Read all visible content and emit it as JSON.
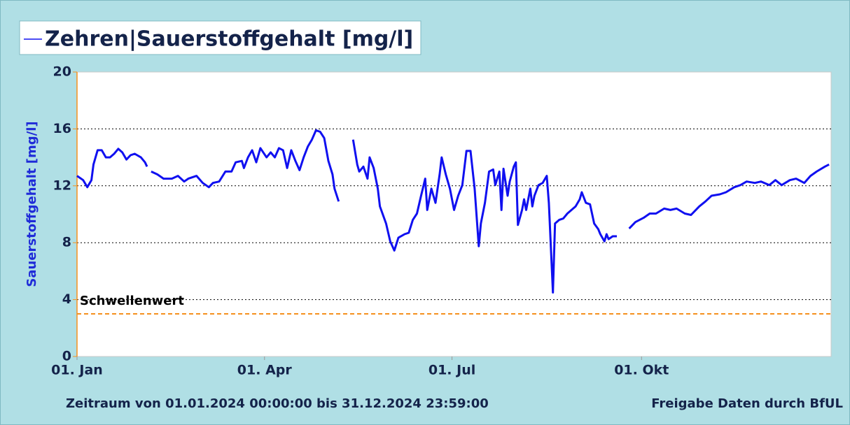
{
  "chart_data": {
    "type": "line",
    "ylabel": "Sauerstoffgehalt [mg/l]",
    "xlim": [
      0,
      366
    ],
    "xticks": [
      {
        "value": 0,
        "label": "01. Jan"
      },
      {
        "value": 91,
        "label": "01. Apr"
      },
      {
        "value": 182,
        "label": "01. Jul"
      },
      {
        "value": 274,
        "label": "01. Okt"
      }
    ],
    "ylim": [
      0,
      20
    ],
    "yticks": [
      0,
      4,
      8,
      12,
      16,
      20
    ],
    "grid": true,
    "threshold": {
      "value": 3,
      "label": "Schwellenwert",
      "color": "#f5901e"
    },
    "footer_left": "Zeitraum von 01.01.2024 00:00:00 bis 31.12.2024 23:59:00",
    "footer_right": "Freigabe Daten durch BfUL",
    "x": [
      0,
      3,
      5,
      7,
      8,
      10,
      12,
      14,
      16,
      18,
      20,
      22,
      24,
      26,
      28,
      31,
      33,
      34,
      null,
      36,
      39,
      42,
      46,
      49,
      52,
      54,
      58,
      61,
      64,
      66,
      69,
      72,
      75,
      77,
      80,
      81,
      83,
      85,
      87,
      89,
      92,
      94,
      96,
      98,
      100,
      102,
      104,
      106,
      108,
      110,
      112,
      114,
      116,
      118,
      120,
      122,
      124,
      125,
      127,
      null,
      134,
      136,
      137,
      139,
      141,
      142,
      144,
      146,
      147,
      150,
      152,
      154,
      156,
      159,
      161,
      163,
      165,
      167,
      169,
      170,
      172,
      174,
      176,
      177,
      179,
      181,
      183,
      185,
      187,
      189,
      191,
      193,
      195,
      196,
      198,
      200,
      202,
      203,
      205,
      206,
      207,
      209,
      210,
      212,
      213,
      214,
      216,
      217,
      218,
      220,
      221,
      222,
      224,
      226,
      228,
      229,
      231,
      232,
      234,
      236,
      238,
      240,
      242,
      244,
      245,
      247,
      249,
      251,
      253,
      254,
      256,
      257,
      258,
      260,
      262,
      null,
      268,
      271,
      275,
      278,
      281,
      285,
      288,
      291,
      295,
      298,
      302,
      305,
      308,
      312,
      315,
      319,
      322,
      325,
      329,
      332,
      336,
      339,
      342,
      346,
      349,
      353,
      356,
      359,
      363,
      365
    ],
    "series": [
      {
        "name": "Zehren|Sauerstoffgehalt [mg/l]",
        "color": "#1010f0",
        "values": [
          12.7,
          12.4,
          11.9,
          12.4,
          13.5,
          14.5,
          14.5,
          14.0,
          14.0,
          14.25,
          14.6,
          14.35,
          13.85,
          14.15,
          14.25,
          14.0,
          13.65,
          13.35,
          null,
          13.0,
          12.8,
          12.5,
          12.5,
          12.7,
          12.3,
          12.5,
          12.7,
          12.2,
          11.9,
          12.2,
          12.3,
          13.0,
          13.0,
          13.65,
          13.75,
          13.25,
          14.0,
          14.5,
          13.65,
          14.65,
          14.0,
          14.35,
          14.0,
          14.65,
          14.5,
          13.25,
          14.5,
          13.75,
          13.1,
          14.0,
          14.75,
          15.25,
          15.9,
          15.8,
          15.35,
          13.75,
          12.8,
          11.8,
          10.9,
          null,
          15.25,
          13.5,
          13.0,
          13.35,
          12.5,
          14.0,
          13.25,
          11.8,
          10.55,
          9.35,
          8.1,
          7.45,
          8.35,
          8.6,
          8.7,
          9.6,
          10.05,
          11.3,
          12.5,
          10.3,
          11.8,
          10.8,
          12.8,
          14.0,
          12.8,
          11.8,
          10.3,
          11.3,
          12.05,
          14.45,
          14.45,
          11.8,
          7.75,
          9.35,
          10.8,
          13.0,
          13.15,
          12.05,
          13.0,
          10.3,
          13.2,
          11.3,
          12.3,
          13.35,
          13.65,
          9.25,
          10.3,
          11.05,
          10.3,
          11.8,
          10.55,
          11.3,
          12.05,
          12.2,
          12.7,
          10.8,
          4.5,
          9.35,
          9.6,
          9.7,
          10.05,
          10.3,
          10.55,
          11.05,
          11.55,
          10.8,
          10.7,
          9.35,
          8.95,
          8.6,
          8.1,
          8.6,
          8.25,
          8.45,
          8.45,
          null,
          9.0,
          9.45,
          9.75,
          10.05,
          10.05,
          10.4,
          10.3,
          10.4,
          10.05,
          9.95,
          10.55,
          10.9,
          11.3,
          11.4,
          11.55,
          11.9,
          12.05,
          12.3,
          12.2,
          12.3,
          12.05,
          12.4,
          12.05,
          12.4,
          12.5,
          12.2,
          12.7,
          13.0,
          13.35,
          13.5
        ]
      }
    ]
  }
}
